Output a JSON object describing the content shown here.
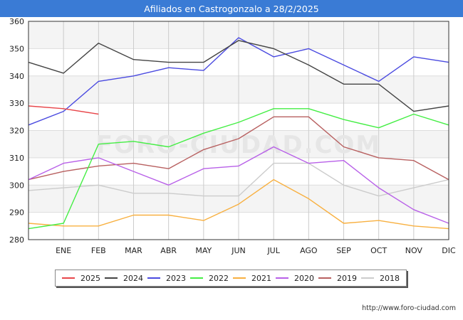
{
  "title": "Afiliados en Castrogonzalo a 28/2/2025",
  "footer_url": "http://www.foro-ciudad.com",
  "watermark": "FORO-CIUDAD.COM",
  "chart_data": {
    "type": "line",
    "title": "Afiliados en Castrogonzalo a 28/2/2025",
    "xlabel": "",
    "ylabel": "",
    "categories": [
      "",
      "ENE",
      "FEB",
      "MAR",
      "ABR",
      "MAY",
      "JUN",
      "JUL",
      "AGO",
      "SEP",
      "OCT",
      "NOV",
      "DIC"
    ],
    "ylim": [
      280,
      360
    ],
    "yticks": [
      280,
      290,
      300,
      310,
      320,
      330,
      340,
      350,
      360
    ],
    "grid": true,
    "legend_position": "bottom",
    "series": [
      {
        "name": "2025",
        "color": "#e8464a",
        "values": [
          329,
          328,
          326,
          null,
          null,
          null,
          null,
          null,
          null,
          null,
          null,
          null,
          null
        ]
      },
      {
        "name": "2024",
        "color": "#444444",
        "values": [
          345,
          341,
          352,
          346,
          345,
          345,
          353,
          350,
          344,
          337,
          337,
          327,
          329
        ]
      },
      {
        "name": "2023",
        "color": "#4a4ae0",
        "values": [
          322,
          327,
          338,
          340,
          343,
          342,
          354,
          347,
          350,
          344,
          338,
          347,
          345
        ]
      },
      {
        "name": "2022",
        "color": "#44ee44",
        "values": [
          284,
          286,
          315,
          316,
          314,
          319,
          323,
          328,
          328,
          324,
          321,
          326,
          322
        ]
      },
      {
        "name": "2021",
        "color": "#f8b040",
        "values": [
          286,
          285,
          285,
          289,
          289,
          287,
          293,
          302,
          295,
          286,
          287,
          285,
          284
        ]
      },
      {
        "name": "2020",
        "color": "#b860e8",
        "values": [
          302,
          308,
          310,
          305,
          300,
          306,
          307,
          314,
          308,
          309,
          299,
          291,
          286
        ]
      },
      {
        "name": "2019",
        "color": "#b86060",
        "values": [
          302,
          305,
          307,
          308,
          306,
          313,
          317,
          325,
          325,
          314,
          310,
          309,
          302
        ]
      },
      {
        "name": "2018",
        "color": "#cccccc",
        "values": [
          298,
          299,
          300,
          297,
          297,
          296,
          296,
          308,
          308,
          300,
          296,
          299,
          302
        ]
      }
    ]
  }
}
